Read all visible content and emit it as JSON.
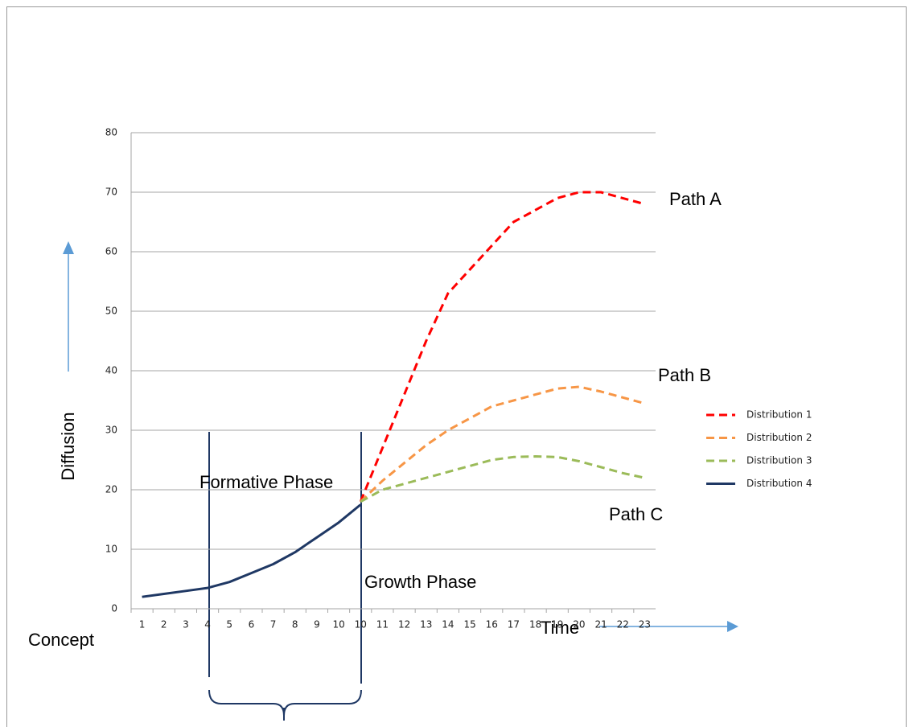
{
  "chart_data": {
    "type": "line",
    "categories": [
      "1",
      "2",
      "3",
      "4",
      "5",
      "6",
      "7",
      "8",
      "9",
      "10",
      "10",
      "11",
      "12",
      "13",
      "14",
      "15",
      "16",
      "17",
      "18",
      "19",
      "20",
      "21",
      "22",
      "23"
    ],
    "series": [
      {
        "name": "Distribution 1",
        "color": "#ff0000",
        "dash": true,
        "values": [
          null,
          null,
          null,
          null,
          null,
          null,
          null,
          null,
          null,
          null,
          18,
          27,
          36,
          45,
          53,
          57,
          61,
          65,
          67,
          69,
          70,
          70,
          69,
          68
        ]
      },
      {
        "name": "Distribution 2",
        "color": "#f79646",
        "dash": true,
        "values": [
          null,
          null,
          null,
          null,
          null,
          null,
          null,
          null,
          null,
          null,
          18,
          21.5,
          24.5,
          27.5,
          30,
          32,
          34,
          35,
          36,
          37,
          37.3,
          36.5,
          35.5,
          34.5
        ]
      },
      {
        "name": "Distribution 3",
        "color": "#9bbb59",
        "dash": true,
        "values": [
          null,
          null,
          null,
          null,
          null,
          null,
          null,
          null,
          null,
          null,
          18,
          20,
          21,
          22,
          23,
          24,
          25,
          25.5,
          25.6,
          25.5,
          24.8,
          23.8,
          22.8,
          22
        ]
      },
      {
        "name": "Distribution 4",
        "color": "#1f3864",
        "dash": false,
        "values": [
          2,
          2.5,
          3,
          3.5,
          4.5,
          6,
          7.5,
          9.5,
          12,
          14.5,
          17.5,
          null,
          null,
          null,
          null,
          null,
          null,
          null,
          null,
          null,
          null,
          null,
          null,
          null
        ]
      }
    ],
    "ylim": [
      0,
      80
    ],
    "yticks": [
      0,
      10,
      20,
      30,
      40,
      50,
      60,
      70,
      80
    ],
    "grid": true,
    "y_label": "Diffusion",
    "x_label": "Time",
    "annotations": [
      "Path A",
      "Path B",
      "Path C",
      "Formative Phase",
      "Growth Phase",
      "Concept"
    ]
  }
}
